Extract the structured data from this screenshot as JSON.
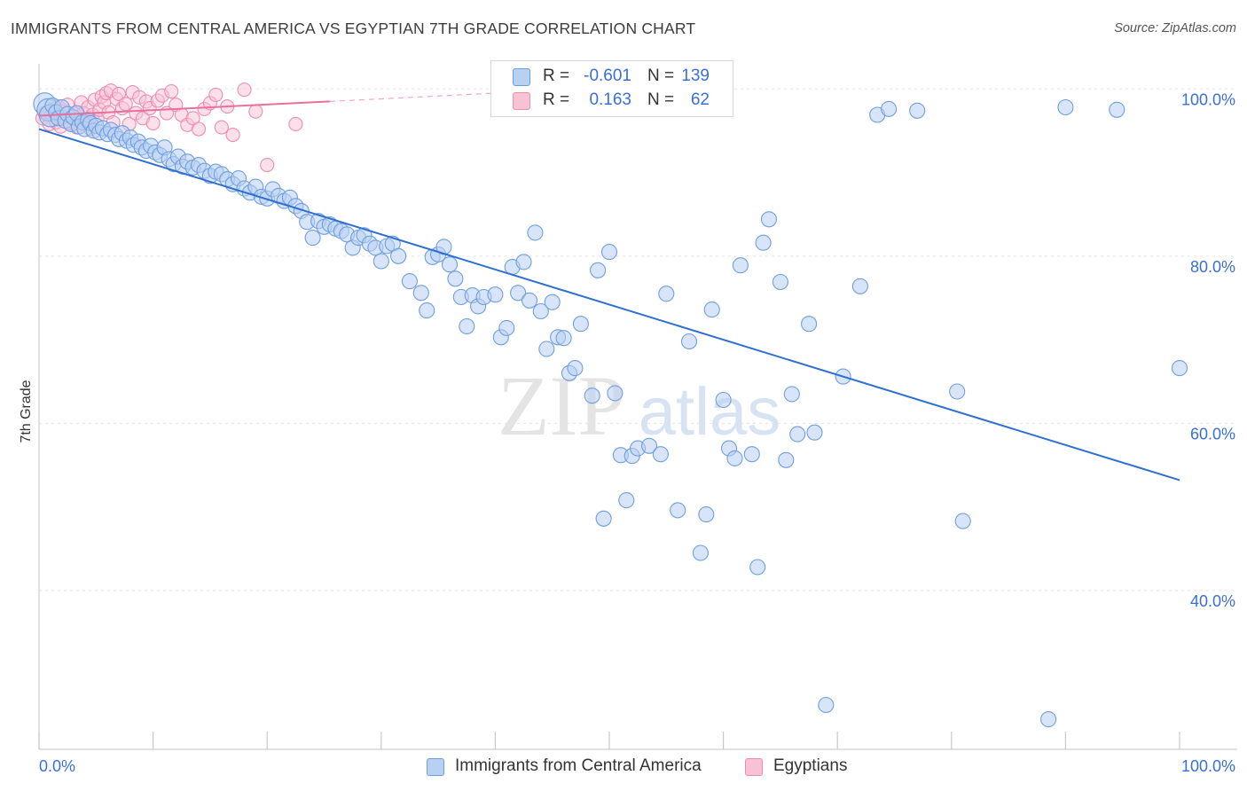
{
  "title": "IMMIGRANTS FROM CENTRAL AMERICA VS EGYPTIAN 7TH GRADE CORRELATION CHART",
  "source": "Source: ZipAtlas.com",
  "watermark": {
    "zip": "ZIP",
    "atlas": "atlas"
  },
  "legend_stats": [
    {
      "r_label": "R =",
      "r_value": "-0.601",
      "n_label": "N =",
      "n_value": "139"
    },
    {
      "r_label": "R =",
      "r_value": "0.163",
      "n_label": "N =",
      "n_value": "62"
    }
  ],
  "bottom_legend": [
    {
      "label": "Immigrants from Central America"
    },
    {
      "label": "Egyptians"
    }
  ],
  "colors": {
    "blue_fill": "#b8d0f2",
    "blue_stroke": "#6f9ee0",
    "blue_line": "#2f6fcf",
    "pink_fill": "#f8c2d5",
    "pink_stroke": "#ec8db0",
    "pink_line": "#e8709a",
    "axis_label": "#3a6fd6",
    "grid": "#e3e3e3"
  },
  "chart_data": {
    "type": "scatter",
    "title": "IMMIGRANTS FROM CENTRAL AMERICA VS EGYPTIAN 7TH GRADE CORRELATION CHART",
    "xlabel": "",
    "ylabel": "7th Grade",
    "xlim": [
      0,
      100
    ],
    "ylim": [
      21,
      103
    ],
    "x_tick_labels": [
      {
        "value": 0,
        "label": "0.0%"
      },
      {
        "value": 100,
        "label": "100.0%"
      }
    ],
    "y_tick_labels": [
      {
        "value": 40,
        "label": "40.0%"
      },
      {
        "value": 60,
        "label": "60.0%"
      },
      {
        "value": 80,
        "label": "80.0%"
      },
      {
        "value": 100,
        "label": "100.0%"
      }
    ],
    "grid": true,
    "series": [
      {
        "name": "Immigrants from Central America",
        "color": "#6f9ee0",
        "trend": {
          "x": [
            0,
            100
          ],
          "y": [
            95.2,
            53.2
          ]
        },
        "points": [
          [
            0.5,
            98.2
          ],
          [
            0.8,
            97.5
          ],
          [
            1.0,
            96.8
          ],
          [
            1.2,
            98.0
          ],
          [
            1.5,
            97.2
          ],
          [
            1.7,
            96.5
          ],
          [
            2.0,
            97.8
          ],
          [
            2.3,
            96.2
          ],
          [
            2.5,
            97.0
          ],
          [
            2.8,
            95.8
          ],
          [
            3.0,
            96.6
          ],
          [
            3.3,
            97.1
          ],
          [
            3.5,
            95.5
          ],
          [
            3.8,
            96.0
          ],
          [
            4.0,
            95.2
          ],
          [
            4.3,
            96.3
          ],
          [
            4.5,
            95.9
          ],
          [
            4.8,
            95.0
          ],
          [
            5.0,
            95.6
          ],
          [
            5.3,
            94.8
          ],
          [
            5.6,
            95.3
          ],
          [
            6.0,
            94.6
          ],
          [
            6.3,
            95.1
          ],
          [
            6.7,
            94.5
          ],
          [
            7.0,
            94.0
          ],
          [
            7.3,
            94.7
          ],
          [
            7.7,
            93.8
          ],
          [
            8.0,
            94.2
          ],
          [
            8.3,
            93.3
          ],
          [
            8.7,
            93.7
          ],
          [
            9.0,
            93.0
          ],
          [
            9.4,
            92.6
          ],
          [
            9.8,
            93.2
          ],
          [
            10.2,
            92.4
          ],
          [
            10.6,
            92.1
          ],
          [
            11.0,
            93.0
          ],
          [
            11.4,
            91.6
          ],
          [
            11.8,
            91.0
          ],
          [
            12.2,
            91.9
          ],
          [
            12.6,
            90.7
          ],
          [
            13.0,
            91.3
          ],
          [
            13.5,
            90.6
          ],
          [
            14.0,
            90.9
          ],
          [
            14.5,
            90.2
          ],
          [
            15.0,
            89.6
          ],
          [
            15.5,
            90.1
          ],
          [
            16.0,
            89.8
          ],
          [
            16.5,
            89.2
          ],
          [
            17.0,
            88.6
          ],
          [
            17.5,
            89.3
          ],
          [
            18.0,
            88.1
          ],
          [
            18.5,
            87.6
          ],
          [
            19.0,
            88.3
          ],
          [
            19.5,
            87.1
          ],
          [
            20.0,
            86.9
          ],
          [
            20.5,
            88.0
          ],
          [
            21.0,
            87.2
          ],
          [
            21.5,
            86.6
          ],
          [
            22.0,
            87.0
          ],
          [
            22.5,
            86.0
          ],
          [
            23.0,
            85.4
          ],
          [
            23.5,
            84.1
          ],
          [
            24.0,
            82.2
          ],
          [
            24.5,
            84.2
          ],
          [
            25.0,
            83.5
          ],
          [
            25.5,
            83.8
          ],
          [
            26.0,
            83.3
          ],
          [
            26.5,
            83.0
          ],
          [
            27.0,
            82.6
          ],
          [
            27.5,
            81.0
          ],
          [
            28.0,
            82.2
          ],
          [
            28.5,
            82.5
          ],
          [
            29.0,
            81.5
          ],
          [
            29.5,
            81.0
          ],
          [
            30.0,
            79.4
          ],
          [
            30.5,
            81.2
          ],
          [
            31.0,
            81.5
          ],
          [
            31.5,
            80.0
          ],
          [
            32.5,
            77.0
          ],
          [
            33.5,
            75.6
          ],
          [
            34.0,
            73.5
          ],
          [
            34.5,
            79.9
          ],
          [
            35.0,
            80.2
          ],
          [
            35.5,
            81.1
          ],
          [
            36.0,
            79.0
          ],
          [
            36.5,
            77.3
          ],
          [
            37.0,
            75.1
          ],
          [
            37.5,
            71.6
          ],
          [
            38.0,
            75.3
          ],
          [
            38.5,
            74.0
          ],
          [
            39.0,
            75.1
          ],
          [
            40.0,
            75.4
          ],
          [
            40.5,
            70.3
          ],
          [
            41.0,
            71.4
          ],
          [
            41.5,
            78.7
          ],
          [
            42.0,
            75.6
          ],
          [
            42.5,
            79.3
          ],
          [
            43.0,
            74.7
          ],
          [
            43.5,
            82.8
          ],
          [
            44.0,
            73.4
          ],
          [
            44.5,
            68.9
          ],
          [
            45.0,
            74.5
          ],
          [
            45.5,
            70.3
          ],
          [
            46.0,
            70.2
          ],
          [
            46.5,
            66.0
          ],
          [
            47.0,
            66.6
          ],
          [
            47.5,
            71.9
          ],
          [
            48.5,
            63.3
          ],
          [
            49.0,
            78.3
          ],
          [
            49.5,
            48.6
          ],
          [
            50.0,
            80.5
          ],
          [
            50.5,
            63.6
          ],
          [
            51.0,
            56.2
          ],
          [
            51.5,
            50.8
          ],
          [
            52.0,
            56.1
          ],
          [
            52.5,
            57.0
          ],
          [
            53.5,
            57.3
          ],
          [
            54.5,
            56.3
          ],
          [
            55.0,
            75.5
          ],
          [
            56.0,
            49.6
          ],
          [
            57.0,
            69.8
          ],
          [
            58.0,
            44.5
          ],
          [
            58.5,
            49.1
          ],
          [
            59.0,
            73.6
          ],
          [
            60.0,
            62.8
          ],
          [
            60.5,
            57.0
          ],
          [
            61.0,
            55.8
          ],
          [
            61.5,
            78.9
          ],
          [
            62.5,
            56.3
          ],
          [
            63.0,
            42.8
          ],
          [
            63.5,
            81.6
          ],
          [
            64.0,
            84.4
          ],
          [
            65.0,
            76.9
          ],
          [
            65.5,
            55.6
          ],
          [
            66.0,
            63.5
          ],
          [
            66.5,
            58.7
          ],
          [
            67.5,
            71.9
          ],
          [
            68.0,
            58.9
          ],
          [
            69.0,
            26.3
          ],
          [
            70.5,
            65.6
          ],
          [
            72.0,
            76.4
          ],
          [
            73.5,
            96.9
          ],
          [
            74.5,
            97.6
          ],
          [
            77.0,
            97.4
          ],
          [
            80.5,
            63.8
          ],
          [
            81.0,
            48.3
          ],
          [
            88.5,
            24.6
          ],
          [
            90.0,
            97.8
          ],
          [
            94.5,
            97.5
          ],
          [
            100.0,
            66.6
          ]
        ]
      },
      {
        "name": "Egyptians",
        "color": "#ec8db0",
        "trend": {
          "x": [
            0,
            25.5
          ],
          "y": [
            96.8,
            98.5
          ]
        },
        "trend_extension": {
          "x": [
            25.5,
            40
          ],
          "y": [
            98.5,
            99.5
          ]
        },
        "points": [
          [
            0.3,
            96.5
          ],
          [
            0.6,
            97.2
          ],
          [
            0.9,
            95.8
          ],
          [
            1.1,
            96.9
          ],
          [
            1.3,
            97.6
          ],
          [
            1.5,
            96.0
          ],
          [
            1.7,
            97.9
          ],
          [
            1.9,
            95.5
          ],
          [
            2.1,
            96.6
          ],
          [
            2.3,
            97.3
          ],
          [
            2.5,
            98.1
          ],
          [
            2.7,
            95.9
          ],
          [
            2.9,
            96.8
          ],
          [
            3.1,
            97.0
          ],
          [
            3.3,
            95.4
          ],
          [
            3.5,
            96.3
          ],
          [
            3.7,
            98.4
          ],
          [
            3.9,
            97.1
          ],
          [
            4.1,
            96.1
          ],
          [
            4.3,
            97.8
          ],
          [
            4.5,
            95.2
          ],
          [
            4.7,
            96.9
          ],
          [
            4.9,
            98.7
          ],
          [
            5.1,
            96.4
          ],
          [
            5.3,
            97.5
          ],
          [
            5.5,
            99.1
          ],
          [
            5.7,
            98.4
          ],
          [
            5.9,
            99.5
          ],
          [
            6.1,
            97.2
          ],
          [
            6.3,
            99.8
          ],
          [
            6.5,
            96.0
          ],
          [
            6.8,
            98.8
          ],
          [
            7.0,
            99.4
          ],
          [
            7.3,
            97.7
          ],
          [
            7.6,
            98.2
          ],
          [
            7.9,
            95.8
          ],
          [
            8.2,
            99.6
          ],
          [
            8.5,
            97.1
          ],
          [
            8.8,
            99.0
          ],
          [
            9.1,
            96.5
          ],
          [
            9.4,
            98.5
          ],
          [
            9.7,
            97.7
          ],
          [
            10.0,
            95.9
          ],
          [
            10.4,
            98.6
          ],
          [
            10.8,
            99.2
          ],
          [
            11.2,
            97.1
          ],
          [
            11.6,
            99.7
          ],
          [
            12.0,
            98.1
          ],
          [
            12.5,
            96.9
          ],
          [
            13.0,
            95.7
          ],
          [
            13.5,
            96.5
          ],
          [
            14.0,
            95.2
          ],
          [
            14.5,
            97.6
          ],
          [
            15.0,
            98.3
          ],
          [
            15.5,
            99.3
          ],
          [
            16.0,
            95.4
          ],
          [
            16.5,
            97.9
          ],
          [
            17.0,
            94.5
          ],
          [
            18.0,
            99.9
          ],
          [
            19.0,
            97.3
          ],
          [
            20.0,
            90.9
          ],
          [
            22.5,
            95.8
          ]
        ]
      }
    ]
  }
}
